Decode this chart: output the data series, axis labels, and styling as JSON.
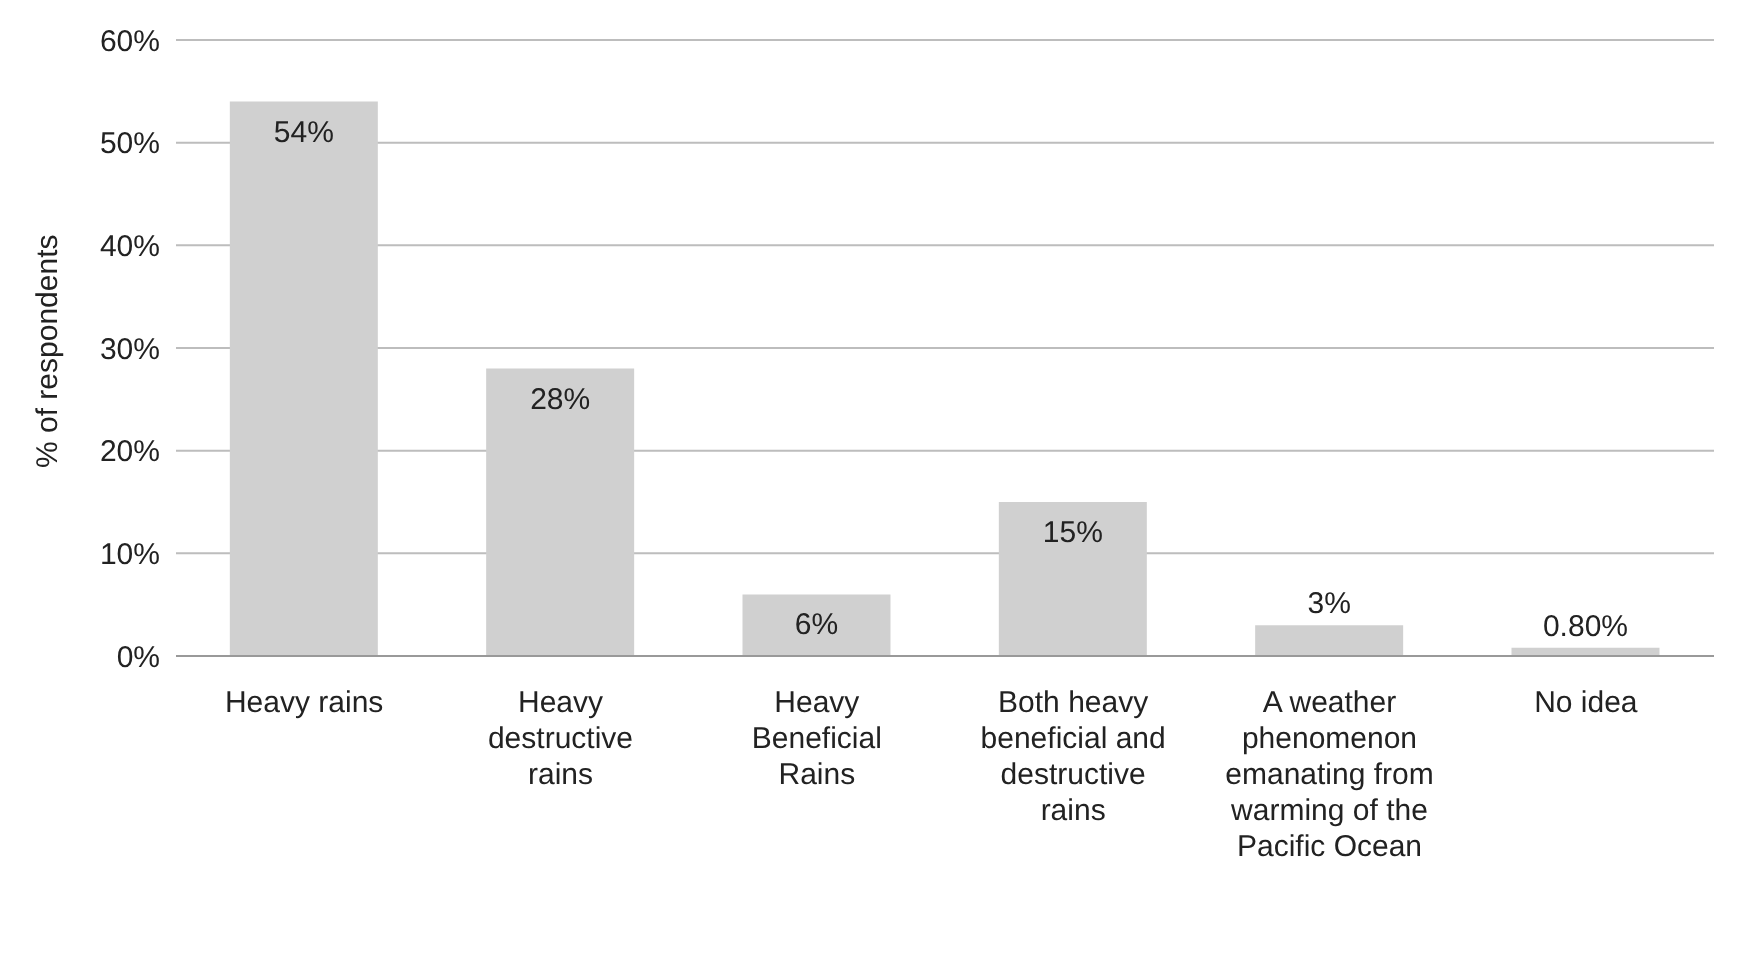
{
  "chart_data": {
    "type": "bar",
    "ylabel": "% of respondents",
    "categories": [
      "Heavy rains",
      "Heavy destructive rains",
      "Heavy Beneficial Rains",
      "Both heavy beneficial and destructive rains",
      "A weather phenomenon emanating from warming of the Pacific Ocean",
      "No idea"
    ],
    "values": [
      54,
      28,
      6,
      15,
      3,
      0.8
    ],
    "value_labels": [
      "54%",
      "28%",
      "6%",
      "15%",
      "3%",
      "0.80%"
    ],
    "color": "#d0d0d0",
    "ylim": [
      0,
      60
    ],
    "yticks": [
      {
        "value": 0,
        "label": "0%"
      },
      {
        "value": 10,
        "label": "10%"
      },
      {
        "value": 20,
        "label": "20%"
      },
      {
        "value": 30,
        "label": "30%"
      },
      {
        "value": 40,
        "label": "40%"
      },
      {
        "value": 50,
        "label": "50%"
      },
      {
        "value": 60,
        "label": "60%"
      }
    ],
    "grid": "y",
    "legend": false
  }
}
